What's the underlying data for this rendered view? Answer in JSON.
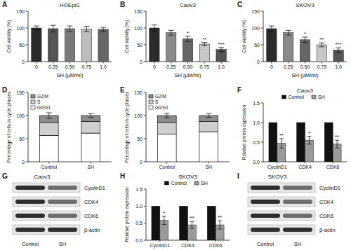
{
  "chart_data": [
    {
      "panel": "A",
      "type": "bar",
      "title": "HOEpiC",
      "x_label": "SH (μM/ml)",
      "y_label": "Cell viability (%)",
      "categories": [
        "0",
        "0.25",
        "0.50",
        "0.75",
        "1.0"
      ],
      "values": [
        100,
        98,
        98,
        97,
        96
      ],
      "errors": [
        6,
        10,
        8,
        8,
        6
      ],
      "colors": [
        "#2b2b2b",
        "#555555",
        "#7a7a7a",
        "#bdbdbd",
        "#666666"
      ],
      "ylim": [
        0,
        150
      ],
      "yticks": [
        0,
        50,
        100,
        150
      ]
    },
    {
      "panel": "B",
      "type": "bar",
      "title": "Caov3",
      "x_label": "SH (μM/ml)",
      "y_label": "Cell viability (%)",
      "categories": [
        "0",
        "0.25",
        "0.50",
        "0.75",
        "1.0"
      ],
      "values": [
        100,
        86,
        68,
        52,
        36
      ],
      "errors": [
        9,
        7,
        8,
        5,
        6
      ],
      "significance": [
        null,
        null,
        "*",
        "**",
        "***"
      ],
      "colors": [
        "#2b2b2b",
        "#8a8a8a",
        "#666666",
        "#c8c8c8",
        "#555555"
      ],
      "ylim": [
        0,
        150
      ],
      "yticks": [
        0,
        50,
        100,
        150
      ]
    },
    {
      "panel": "C",
      "type": "bar",
      "title": "SKOV3",
      "x_label": "SH (μM/ml)",
      "y_label": "Cell viability (%)",
      "categories": [
        "0",
        "0.25",
        "0.50",
        "0.75",
        "1.0"
      ],
      "values": [
        98,
        86,
        65,
        50,
        34
      ],
      "errors": [
        8,
        7,
        8,
        6,
        7
      ],
      "significance": [
        null,
        null,
        "*",
        "**",
        "***"
      ],
      "colors": [
        "#2b2b2b",
        "#8a8a8a",
        "#666666",
        "#c8c8c8",
        "#555555"
      ],
      "ylim": [
        0,
        150
      ],
      "yticks": [
        0,
        50,
        100,
        150
      ]
    },
    {
      "panel": "D",
      "type": "bar",
      "stacked": true,
      "y_label": "Percentage of cells in cycle phases",
      "categories": [
        "Control",
        "SH"
      ],
      "series": [
        {
          "name": "G0/G1",
          "color": "#ffffff",
          "values": [
            57,
            62
          ]
        },
        {
          "name": "S",
          "color": "#cfcfcf",
          "values": [
            28,
            25
          ]
        },
        {
          "name": "G2/M",
          "color": "#8c8c8c",
          "values": [
            15,
            13
          ],
          "errors": [
            6,
            4
          ]
        }
      ],
      "legend": "top-left",
      "ylim": [
        0,
        150
      ],
      "yticks": [
        0,
        50,
        100,
        150
      ]
    },
    {
      "panel": "E",
      "type": "bar",
      "stacked": true,
      "y_label": "Percentage of cells in cycle phases",
      "categories": [
        "Control",
        "SH"
      ],
      "series": [
        {
          "name": "G0/G1",
          "color": "#ffffff",
          "values": [
            60,
            65
          ]
        },
        {
          "name": "S",
          "color": "#cfcfcf",
          "values": [
            25,
            22
          ]
        },
        {
          "name": "G2/M",
          "color": "#8c8c8c",
          "values": [
            15,
            13
          ],
          "errors": [
            5,
            4
          ]
        }
      ],
      "legend": "top-left",
      "ylim": [
        0,
        150
      ],
      "yticks": [
        0,
        50,
        100,
        150
      ]
    },
    {
      "panel": "F",
      "type": "bar",
      "title": "Caov3",
      "y_label": "Relative protein expression",
      "categories": [
        "CyclinD1",
        "CDK4",
        "CDK6"
      ],
      "series": [
        {
          "name": "Control",
          "color": "#111111",
          "values": [
            1,
            1,
            1
          ]
        },
        {
          "name": "SH",
          "color": "#9a9a9a",
          "values": [
            0.47,
            0.55,
            0.45
          ],
          "errors": [
            0.12,
            0.1,
            0.1
          ],
          "significance": [
            "**",
            "*",
            "**"
          ]
        }
      ],
      "legend": "top",
      "ylim": [
        0,
        1.5
      ],
      "yticks": [
        {
          "value": 0,
          "label": "0.0"
        },
        {
          "value": 0.5,
          "label": "0.5"
        },
        {
          "value": 1,
          "label": "1.0"
        },
        {
          "value": 1.5,
          "label": "1.5"
        }
      ]
    },
    {
      "panel": "H",
      "type": "bar",
      "title": "SKOV3",
      "y_label": "Relative protein expression",
      "categories": [
        "CyclinD1",
        "CDK4",
        "CDK6"
      ],
      "series": [
        {
          "name": "Control",
          "color": "#111111",
          "values": [
            1,
            1,
            1
          ]
        },
        {
          "name": "SH",
          "color": "#9a9a9a",
          "values": [
            0.58,
            0.45,
            0.45
          ],
          "errors": [
            0.12,
            0.1,
            0.12
          ],
          "significance": [
            "*",
            "**",
            "**"
          ]
        }
      ],
      "legend": "top",
      "ylim": [
        0,
        1.5
      ],
      "yticks": [
        {
          "value": 0,
          "label": "0.0"
        },
        {
          "value": 0.5,
          "label": "0.5"
        },
        {
          "value": 1,
          "label": "1.0"
        },
        {
          "value": 1.5,
          "label": "1.5"
        }
      ]
    }
  ],
  "blots": [
    {
      "panel": "G",
      "title": "Caov3",
      "lanes": [
        "Control",
        "SH"
      ],
      "bands": [
        "CyclinD1",
        "CDK4",
        "CDK6",
        "β-actin"
      ]
    },
    {
      "panel": "I",
      "title": "SKOV3",
      "lanes": [
        "Control",
        "SH"
      ],
      "bands": [
        "CyclinD1",
        "CDK4",
        "CDK6",
        "β-actin"
      ]
    }
  ]
}
